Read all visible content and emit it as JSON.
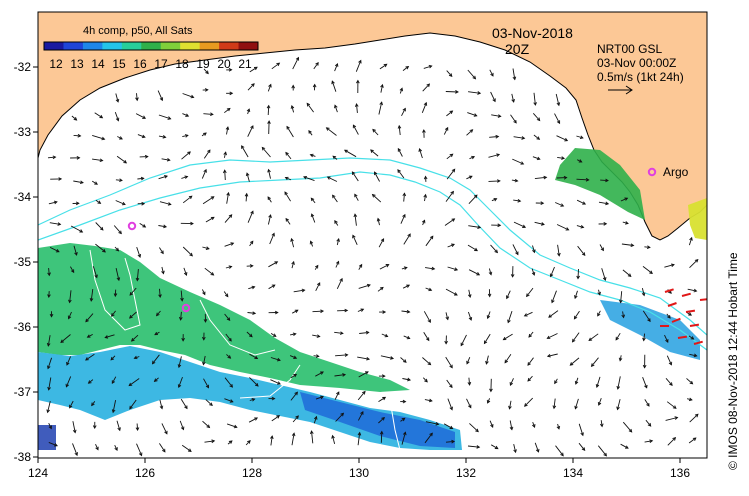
{
  "legend": {
    "title": "4h comp, p50, All Sats",
    "colorbar_labels": [
      "12",
      "13",
      "14",
      "15",
      "16",
      "17",
      "18",
      "19",
      "20",
      "21"
    ],
    "colors": [
      "#1a1aa0",
      "#1f45d8",
      "#1e86e8",
      "#24c4e8",
      "#27cf9a",
      "#2fb04a",
      "#7fd03a",
      "#e0e030",
      "#e89a20",
      "#d03a18",
      "#901010"
    ]
  },
  "date": "03-Nov-2018",
  "time": "20Z",
  "current_info": {
    "model": "NRT00 GSL",
    "valid": "03-Nov 00:00Z",
    "scale": "0.5m/s (1kt 24h)"
  },
  "argo_label": "Argo",
  "axes": {
    "x_ticks": [
      "124",
      "126",
      "128",
      "130",
      "132",
      "134",
      "136"
    ],
    "y_ticks": [
      "-32",
      "-33",
      "-34",
      "-35",
      "-36",
      "-37",
      "-38"
    ]
  },
  "caption": "© IMOS 08-Nov-2018 12:44 Hobart Time",
  "colors": {
    "land": "#fcc896",
    "isobath": "#48e0e8",
    "argo": "#e040e0",
    "arrow": "#111111",
    "alert_arrow": "#e01818"
  }
}
